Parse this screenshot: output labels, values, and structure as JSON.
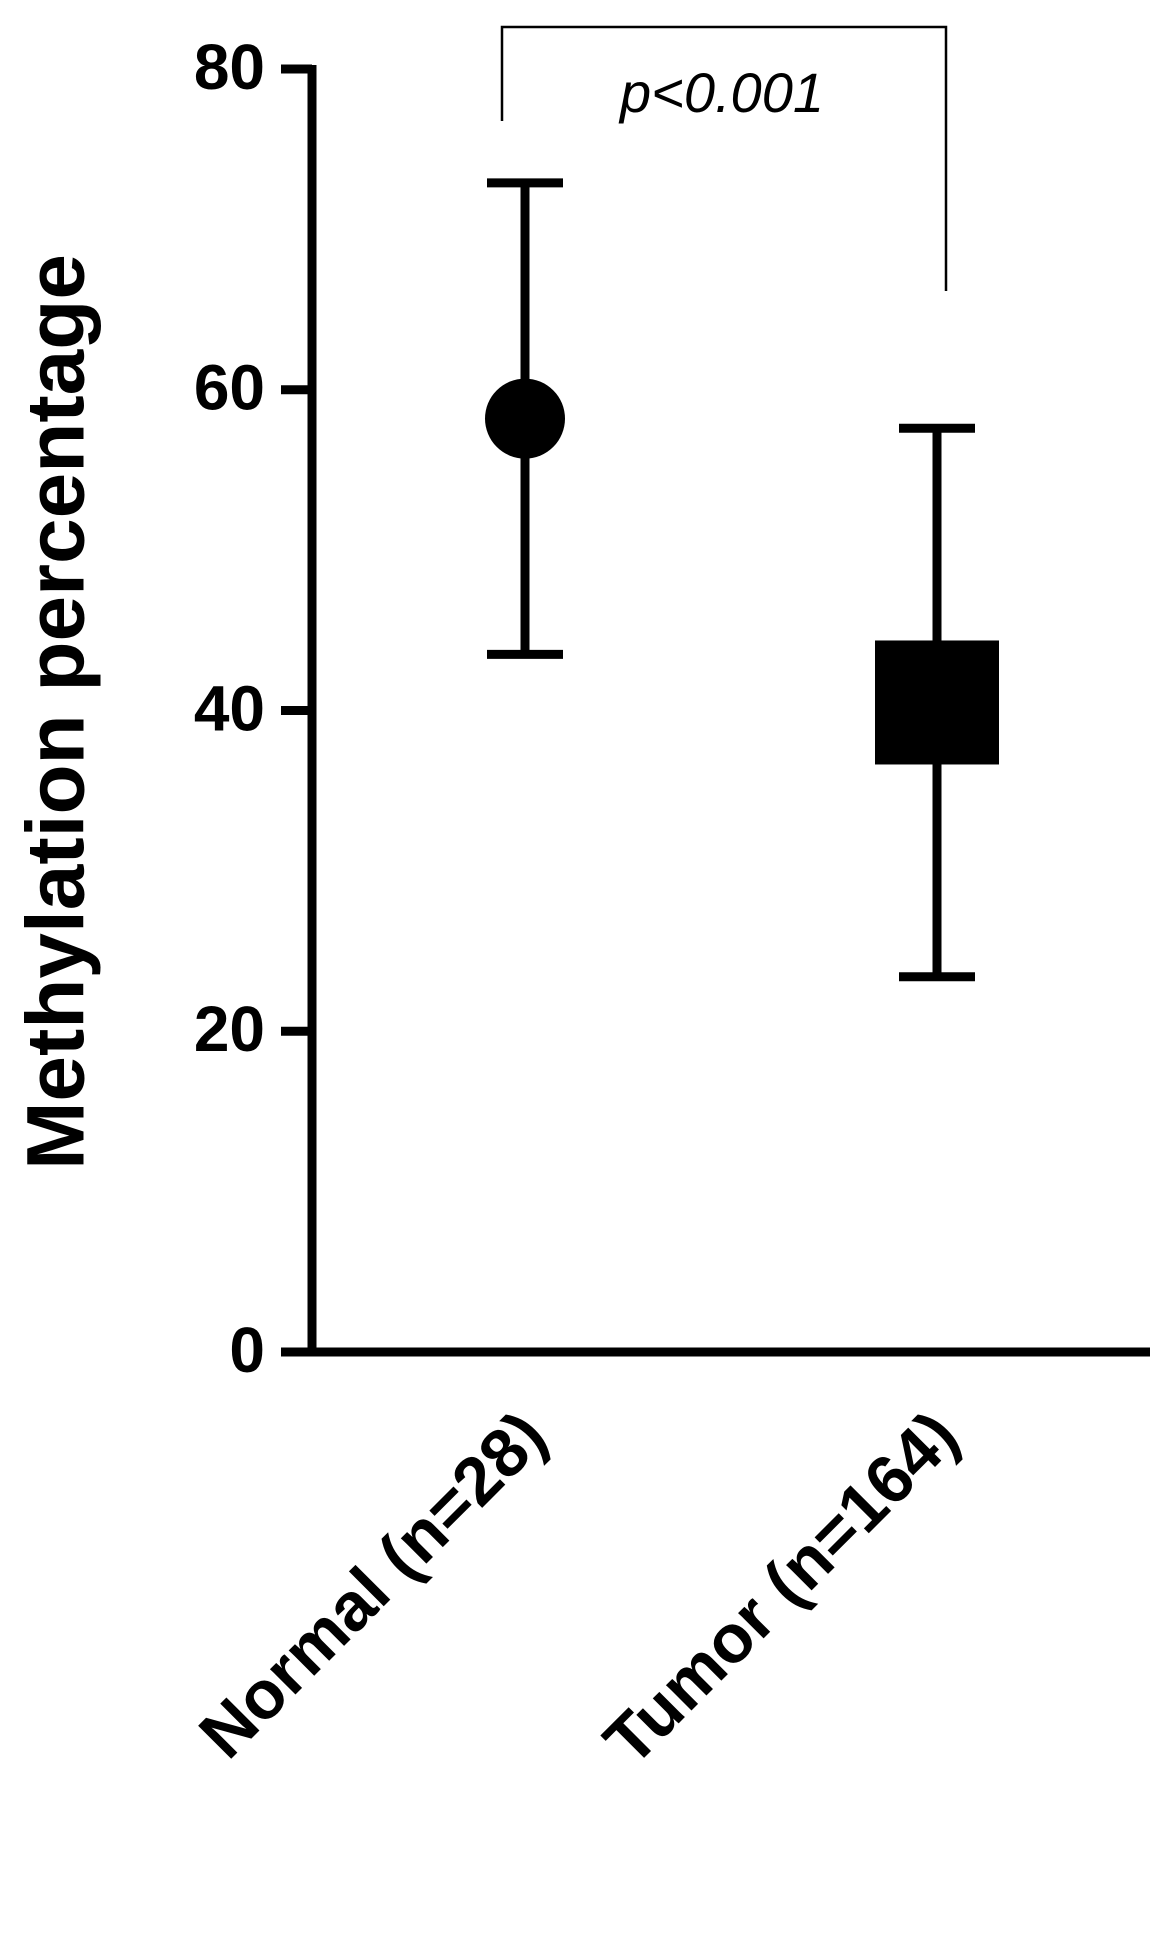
{
  "chart_data": {
    "type": "errorbar",
    "y_label": "Methylation percentage",
    "categories": [
      "Normal (n=28)",
      "Tumor (n=164)"
    ],
    "values": [
      58.2,
      40.5
    ],
    "errors": [
      14.7,
      17.1
    ],
    "markers": [
      "circle",
      "square"
    ],
    "color": "#000000",
    "annotation": "p<0.001",
    "ylim": [
      0,
      80
    ],
    "yticks": [
      0,
      20,
      40,
      60,
      80
    ],
    "grid": false
  }
}
